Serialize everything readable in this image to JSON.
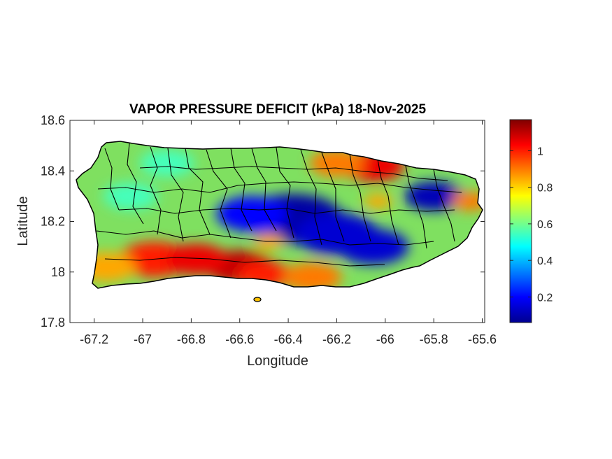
{
  "chart_data": {
    "type": "heatmap",
    "title": "VAPOR PRESSURE DEFICIT (kPa) 18-Nov-2025",
    "xlabel": "Longitude",
    "ylabel": "Latitude",
    "xlim": [
      -67.3,
      -65.59
    ],
    "ylim": [
      17.8,
      18.6
    ],
    "xticks": [
      -67.2,
      -67,
      -66.8,
      -66.6,
      -66.4,
      -66.2,
      -66,
      -65.8,
      -65.6
    ],
    "xtick_labels": [
      "-67.2",
      "-67",
      "-66.8",
      "-66.6",
      "-66.4",
      "-66.2",
      "-66",
      "-65.8",
      "-65.6"
    ],
    "yticks": [
      17.8,
      18,
      18.2,
      18.4,
      18.6
    ],
    "ytick_labels": [
      "17.8",
      "18",
      "18.2",
      "18.4",
      "18.6"
    ],
    "colorbar": {
      "colormap": "jet",
      "range": [
        0.06,
        1.17
      ],
      "ticks": [
        0.2,
        0.4,
        0.6,
        0.8,
        1
      ],
      "tick_labels": [
        "0.2",
        "0.4",
        "0.6",
        "0.8",
        "1"
      ]
    },
    "grid": false,
    "field_anomalies": [
      {
        "lon": -66.38,
        "lat": 18.21,
        "value": 0.1
      },
      {
        "lon": -66.55,
        "lat": 18.23,
        "value": 0.2
      },
      {
        "lon": -66.2,
        "lat": 18.15,
        "value": 0.15
      },
      {
        "lon": -66.05,
        "lat": 18.1,
        "value": 0.15
      },
      {
        "lon": -65.8,
        "lat": 18.3,
        "value": 0.12
      },
      {
        "lon": -66.05,
        "lat": 18.42,
        "value": 1.05
      },
      {
        "lon": -66.2,
        "lat": 18.43,
        "value": 0.9
      },
      {
        "lon": -66.6,
        "lat": 18.02,
        "value": 1.1
      },
      {
        "lon": -66.95,
        "lat": 18.05,
        "value": 1.0
      },
      {
        "lon": -66.78,
        "lat": 18.05,
        "value": 1.05
      },
      {
        "lon": -66.5,
        "lat": 17.99,
        "value": 1.0
      },
      {
        "lon": -66.3,
        "lat": 17.98,
        "value": 0.9
      },
      {
        "lon": -67.15,
        "lat": 18.02,
        "value": 0.85
      },
      {
        "lon": -66.9,
        "lat": 18.43,
        "value": 0.55
      },
      {
        "lon": -67.05,
        "lat": 18.3,
        "value": 0.55
      },
      {
        "lon": -65.65,
        "lat": 18.28,
        "value": 0.9
      },
      {
        "lon": -66.03,
        "lat": 18.28,
        "value": 0.85
      },
      {
        "lon": -66.48,
        "lat": 18.12,
        "value": 0.85
      }
    ]
  }
}
